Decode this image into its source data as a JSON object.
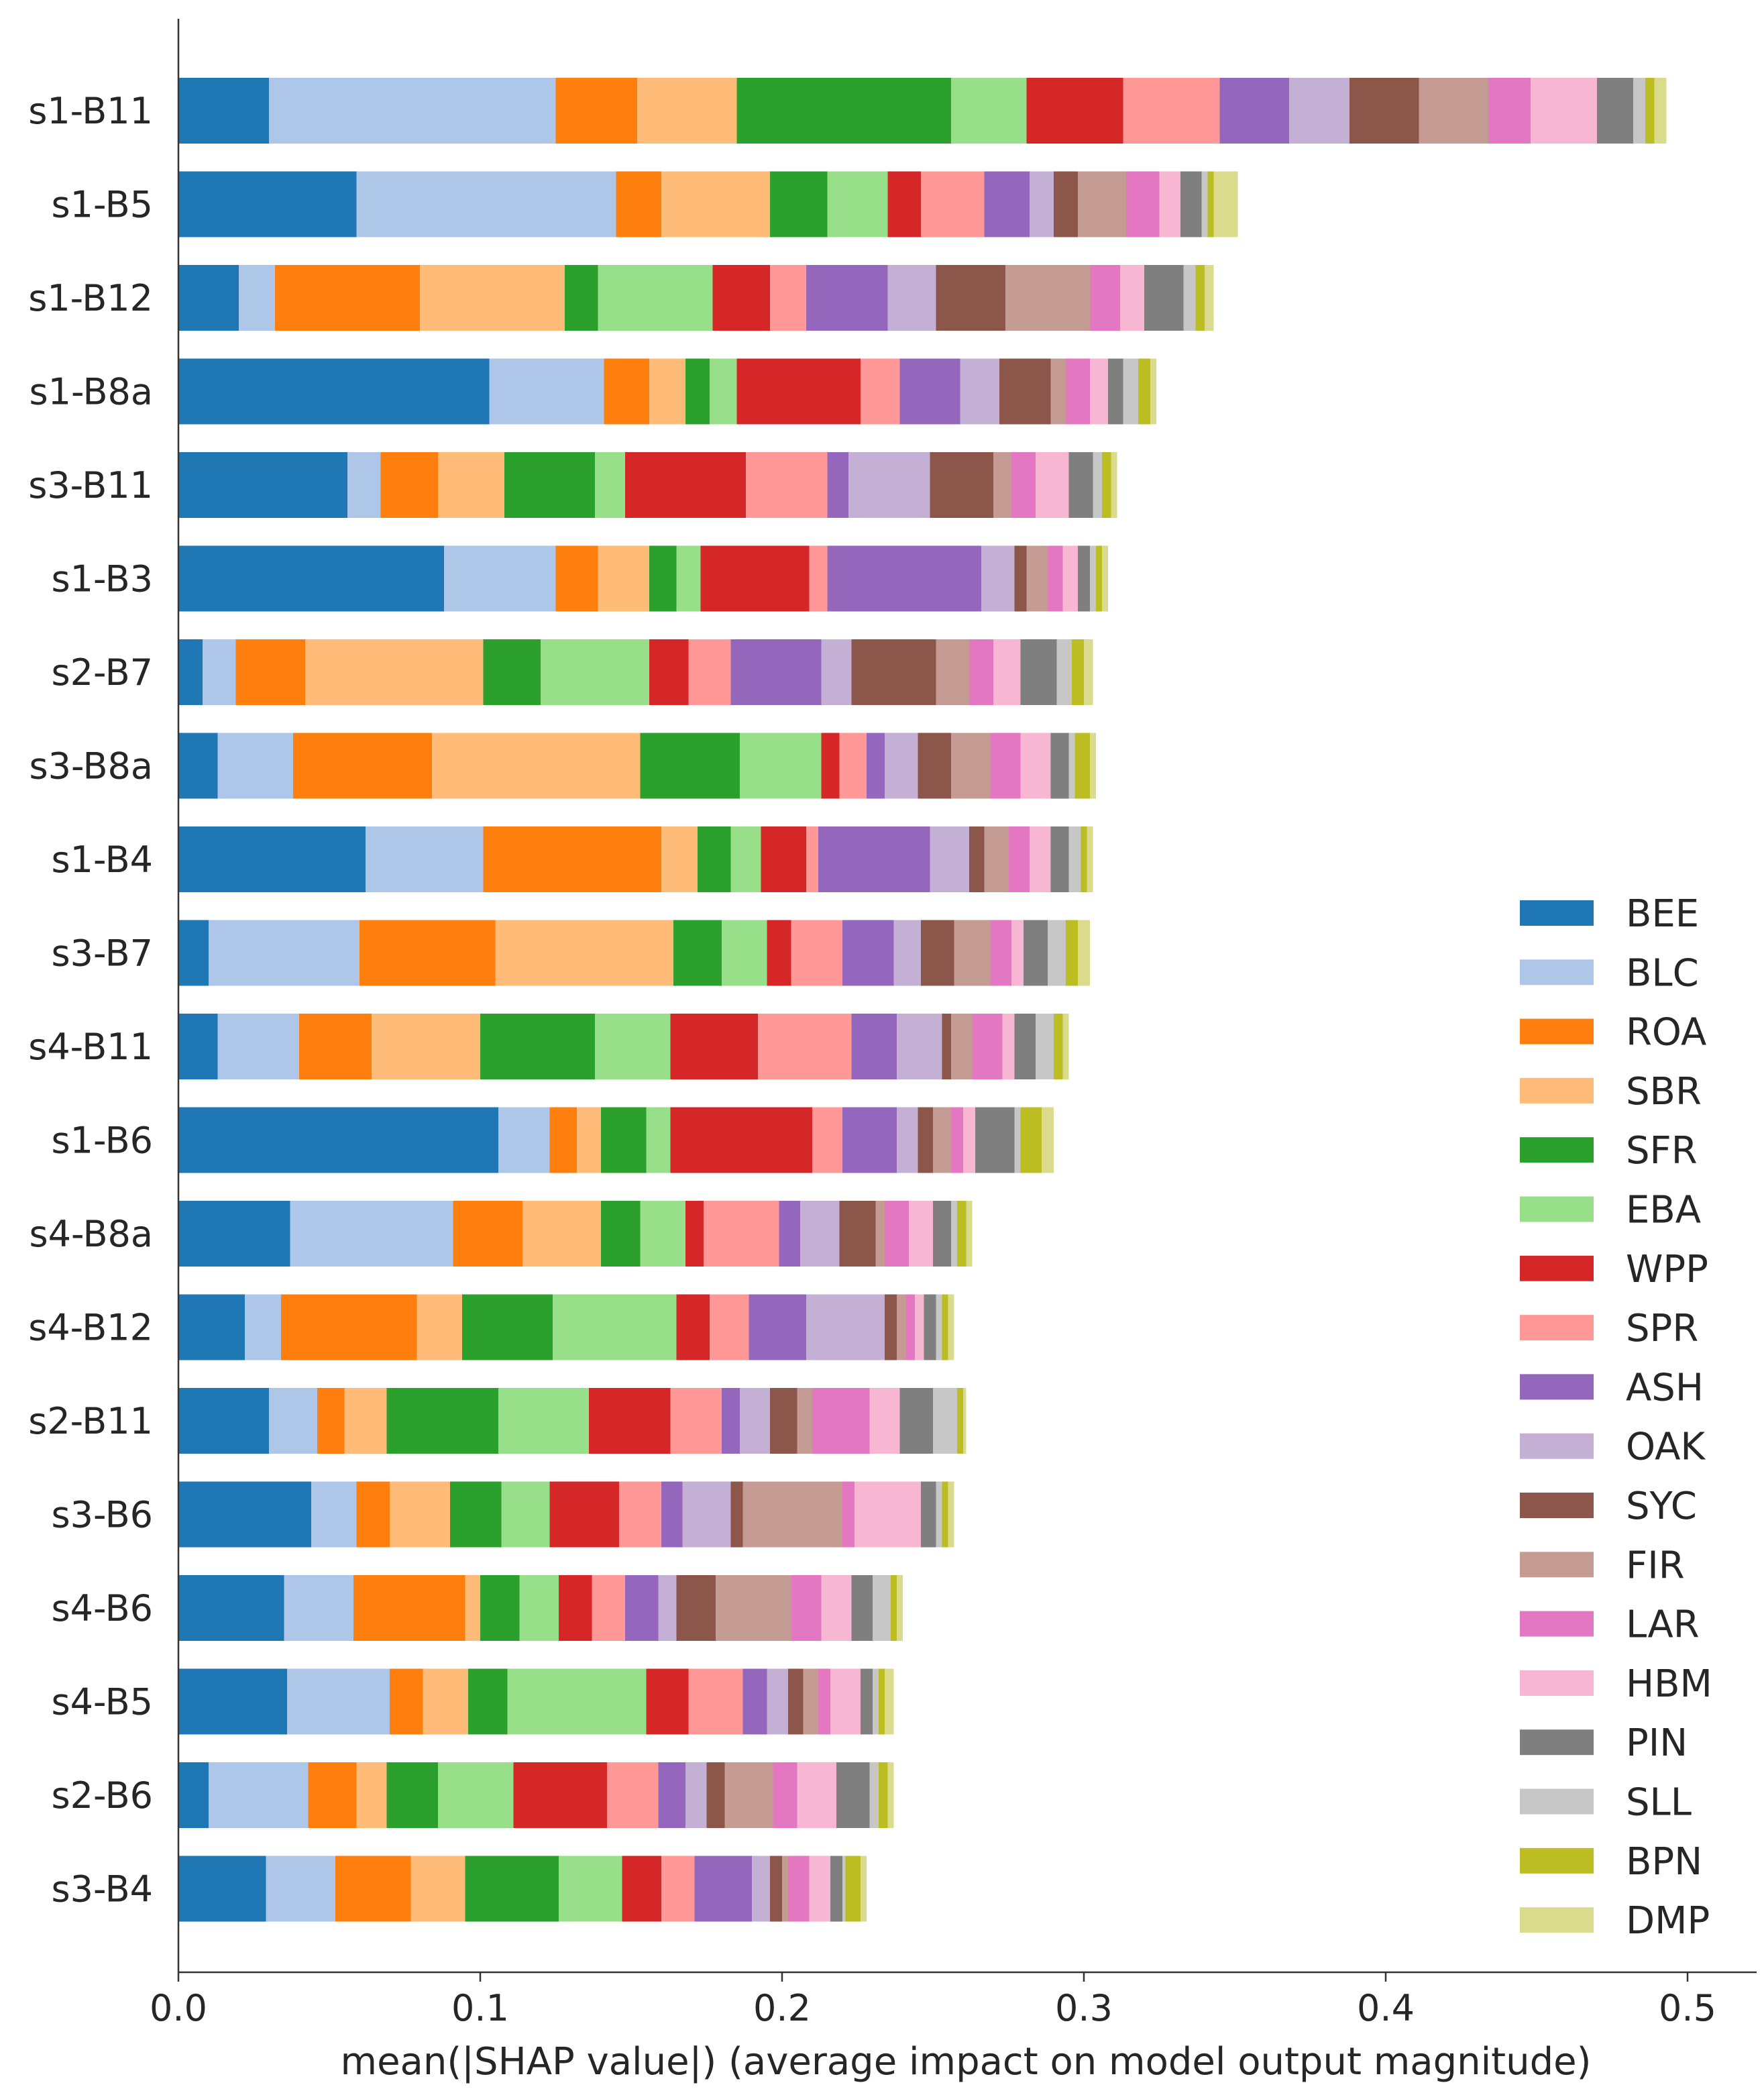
{
  "chart_data": {
    "type": "bar",
    "orientation": "horizontal",
    "stacked": true,
    "title": "",
    "xlabel": "mean(|SHAP value|) (average impact on model output magnitude)",
    "ylabel": "",
    "xlim": [
      0,
      0.52
    ],
    "xticks": [
      0.0,
      0.1,
      0.2,
      0.3,
      0.4,
      0.5
    ],
    "xtick_labels": [
      "0.0",
      "0.1",
      "0.2",
      "0.3",
      "0.4",
      "0.5"
    ],
    "grid": false,
    "legend_position": "lower-right",
    "categories": [
      "s1-B11",
      "s1-B5",
      "s1-B12",
      "s1-B8a",
      "s3-B11",
      "s1-B3",
      "s2-B7",
      "s3-B8a",
      "s1-B4",
      "s3-B7",
      "s4-B11",
      "s1-B6",
      "s4-B8a",
      "s4-B12",
      "s2-B11",
      "s3-B6",
      "s4-B6",
      "s4-B5",
      "s2-B6",
      "s3-B4"
    ],
    "series": [
      {
        "name": "BEE",
        "color": "#1f77b4",
        "values": [
          0.03,
          0.059,
          0.02,
          0.103,
          0.056,
          0.088,
          0.008,
          0.013,
          0.062,
          0.01,
          0.013,
          0.106,
          0.037,
          0.022,
          0.03,
          0.044,
          0.035,
          0.036,
          0.01,
          0.029
        ]
      },
      {
        "name": "BLC",
        "color": "#aec7e8",
        "values": [
          0.095,
          0.086,
          0.012,
          0.038,
          0.011,
          0.037,
          0.011,
          0.025,
          0.039,
          0.05,
          0.027,
          0.017,
          0.054,
          0.012,
          0.016,
          0.015,
          0.023,
          0.034,
          0.033,
          0.023
        ]
      },
      {
        "name": "ROA",
        "color": "#ff7f0e",
        "values": [
          0.027,
          0.015,
          0.048,
          0.015,
          0.019,
          0.014,
          0.023,
          0.046,
          0.059,
          0.045,
          0.024,
          0.009,
          0.023,
          0.045,
          0.009,
          0.011,
          0.037,
          0.011,
          0.016,
          0.025
        ]
      },
      {
        "name": "SBR",
        "color": "#ffbb78",
        "values": [
          0.033,
          0.036,
          0.048,
          0.012,
          0.022,
          0.017,
          0.059,
          0.069,
          0.012,
          0.059,
          0.036,
          0.008,
          0.026,
          0.015,
          0.014,
          0.02,
          0.005,
          0.015,
          0.01,
          0.018
        ]
      },
      {
        "name": "SFR",
        "color": "#2ca02c",
        "values": [
          0.071,
          0.019,
          0.011,
          0.008,
          0.03,
          0.009,
          0.019,
          0.033,
          0.011,
          0.016,
          0.038,
          0.015,
          0.013,
          0.03,
          0.037,
          0.017,
          0.013,
          0.013,
          0.017,
          0.031
        ]
      },
      {
        "name": "EBA",
        "color": "#98df8a",
        "values": [
          0.025,
          0.02,
          0.038,
          0.009,
          0.01,
          0.008,
          0.036,
          0.027,
          0.01,
          0.015,
          0.025,
          0.008,
          0.015,
          0.041,
          0.03,
          0.016,
          0.013,
          0.046,
          0.025,
          0.021
        ]
      },
      {
        "name": "WPP",
        "color": "#d62728",
        "values": [
          0.032,
          0.011,
          0.019,
          0.041,
          0.04,
          0.036,
          0.013,
          0.006,
          0.015,
          0.008,
          0.029,
          0.047,
          0.006,
          0.011,
          0.027,
          0.023,
          0.011,
          0.014,
          0.031,
          0.013
        ]
      },
      {
        "name": "SPR",
        "color": "#ff9896",
        "values": [
          0.032,
          0.021,
          0.012,
          0.013,
          0.027,
          0.006,
          0.014,
          0.009,
          0.004,
          0.017,
          0.031,
          0.01,
          0.025,
          0.013,
          0.017,
          0.014,
          0.011,
          0.018,
          0.017,
          0.011
        ]
      },
      {
        "name": "ASH",
        "color": "#9467bd",
        "values": [
          0.023,
          0.015,
          0.027,
          0.02,
          0.007,
          0.051,
          0.03,
          0.006,
          0.037,
          0.017,
          0.015,
          0.018,
          0.007,
          0.019,
          0.006,
          0.007,
          0.011,
          0.008,
          0.009,
          0.019
        ]
      },
      {
        "name": "OAK",
        "color": "#c5b0d5",
        "values": [
          0.02,
          0.008,
          0.016,
          0.013,
          0.027,
          0.011,
          0.01,
          0.011,
          0.013,
          0.009,
          0.015,
          0.007,
          0.013,
          0.026,
          0.01,
          0.016,
          0.006,
          0.007,
          0.007,
          0.006
        ]
      },
      {
        "name": "SYC",
        "color": "#8c564b",
        "values": [
          0.023,
          0.008,
          0.023,
          0.017,
          0.021,
          0.004,
          0.028,
          0.011,
          0.005,
          0.011,
          0.003,
          0.005,
          0.012,
          0.004,
          0.009,
          0.004,
          0.013,
          0.005,
          0.006,
          0.004
        ]
      },
      {
        "name": "FIR",
        "color": "#c49c94",
        "values": [
          0.023,
          0.016,
          0.028,
          0.005,
          0.006,
          0.007,
          0.011,
          0.013,
          0.008,
          0.012,
          0.007,
          0.006,
          0.003,
          0.003,
          0.005,
          0.033,
          0.025,
          0.005,
          0.016,
          0.002
        ]
      },
      {
        "name": "LAR",
        "color": "#e377c2",
        "values": [
          0.014,
          0.011,
          0.01,
          0.008,
          0.008,
          0.005,
          0.008,
          0.01,
          0.007,
          0.007,
          0.01,
          0.004,
          0.008,
          0.003,
          0.019,
          0.004,
          0.01,
          0.004,
          0.008,
          0.007
        ]
      },
      {
        "name": "HBM",
        "color": "#f7b6d2",
        "values": [
          0.022,
          0.007,
          0.008,
          0.006,
          0.011,
          0.005,
          0.009,
          0.01,
          0.007,
          0.004,
          0.004,
          0.004,
          0.008,
          0.003,
          0.01,
          0.022,
          0.01,
          0.01,
          0.013,
          0.007
        ]
      },
      {
        "name": "PIN",
        "color": "#7f7f7f",
        "values": [
          0.012,
          0.007,
          0.013,
          0.005,
          0.008,
          0.004,
          0.012,
          0.006,
          0.006,
          0.008,
          0.007,
          0.013,
          0.006,
          0.004,
          0.011,
          0.005,
          0.007,
          0.004,
          0.011,
          0.004
        ]
      },
      {
        "name": "SLL",
        "color": "#c7c7c7",
        "values": [
          0.004,
          0.002,
          0.004,
          0.005,
          0.003,
          0.002,
          0.005,
          0.002,
          0.004,
          0.006,
          0.006,
          0.002,
          0.002,
          0.002,
          0.008,
          0.002,
          0.006,
          0.002,
          0.003,
          0.001
        ]
      },
      {
        "name": "BPN",
        "color": "#bcbd22",
        "values": [
          0.003,
          0.002,
          0.003,
          0.004,
          0.003,
          0.002,
          0.004,
          0.005,
          0.002,
          0.004,
          0.003,
          0.007,
          0.003,
          0.002,
          0.002,
          0.002,
          0.002,
          0.002,
          0.003,
          0.005
        ]
      },
      {
        "name": "DMP",
        "color": "#dbdb8d",
        "values": [
          0.004,
          0.008,
          0.003,
          0.002,
          0.002,
          0.002,
          0.003,
          0.002,
          0.002,
          0.004,
          0.002,
          0.004,
          0.002,
          0.002,
          0.001,
          0.002,
          0.002,
          0.003,
          0.002,
          0.002
        ]
      }
    ]
  }
}
